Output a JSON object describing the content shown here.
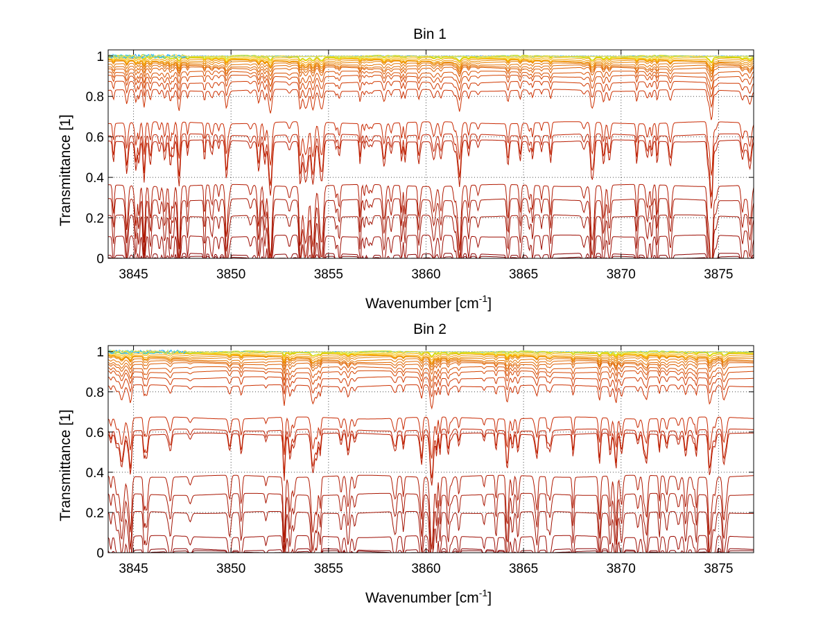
{
  "figure": {
    "background": "#ffffff"
  },
  "chart_data": [
    {
      "type": "line",
      "title": "Bin 1",
      "xlabel": "Wavenumber [cm",
      "xlabel_sup": "-1",
      "xlabel_end": "]",
      "ylabel": "Transmittance [1]",
      "xlim": [
        3843.7,
        3876.8
      ],
      "ylim": [
        0,
        1.03
      ],
      "xticks": [
        3845,
        3850,
        3855,
        3860,
        3865,
        3870,
        3875
      ],
      "xtick_labels": [
        "3845",
        "3850",
        "3855",
        "3860",
        "3865",
        "3870",
        "3875"
      ],
      "yticks": [
        0,
        0.2,
        0.4,
        0.6,
        0.8,
        1
      ],
      "ytick_labels": [
        "0",
        "0.2",
        "0.4",
        "0.6",
        "0.8",
        "1"
      ],
      "grid": true,
      "baselines": [
        0.005,
        0.02,
        0.11,
        0.21,
        0.29,
        0.36,
        0.58,
        0.61,
        0.67,
        0.83,
        0.87,
        0.9,
        0.92,
        0.94,
        0.95,
        0.96,
        0.97,
        0.975,
        0.98,
        0.985,
        0.99,
        0.993,
        0.996,
        0.998
      ],
      "strong_lines": [
        {
          "x": 3852.0,
          "depth": 0.55
        },
        {
          "x": 3853.8,
          "depth": 0.5
        },
        {
          "x": 3854.2,
          "depth": 0.6
        },
        {
          "x": 3854.6,
          "depth": 0.45
        },
        {
          "x": 3860.4,
          "depth": 0.25
        },
        {
          "x": 3874.6,
          "depth": 0.7
        },
        {
          "x": 3876.6,
          "depth": 0.4
        }
      ],
      "colors": [
        "#7a0000",
        "#8b0000",
        "#9c0a00",
        "#a01000",
        "#a81400",
        "#b01800",
        "#b81c00",
        "#c02000",
        "#c82800",
        "#cc3000",
        "#d03800",
        "#d44400",
        "#d85000",
        "#dc5c00",
        "#e06800",
        "#e47400",
        "#e88000",
        "#ec8c00",
        "#f09800",
        "#f4a400",
        "#f8b400",
        "#f4c400",
        "#e8d800",
        "#c8e000"
      ],
      "noise_colors": [
        "#1f9fff",
        "#3cc8ff",
        "#7fe07f",
        "#ffd84a"
      ]
    },
    {
      "type": "line",
      "title": "Bin 2",
      "xlabel": "Wavenumber [cm",
      "xlabel_sup": "-1",
      "xlabel_end": "]",
      "ylabel": "Transmittance [1]",
      "xlim": [
        3843.7,
        3876.8
      ],
      "ylim": [
        0,
        1.03
      ],
      "xticks": [
        3845,
        3850,
        3855,
        3860,
        3865,
        3870,
        3875
      ],
      "xtick_labels": [
        "3845",
        "3850",
        "3855",
        "3860",
        "3865",
        "3870",
        "3875"
      ],
      "yticks": [
        0,
        0.2,
        0.4,
        0.6,
        0.8,
        1
      ],
      "ytick_labels": [
        "0",
        "0.2",
        "0.4",
        "0.6",
        "0.8",
        "1"
      ],
      "grid": true,
      "baselines": [
        0.005,
        0.015,
        0.08,
        0.2,
        0.29,
        0.38,
        0.59,
        0.61,
        0.67,
        0.83,
        0.87,
        0.9,
        0.92,
        0.94,
        0.95,
        0.96,
        0.97,
        0.975,
        0.98,
        0.985,
        0.99,
        0.993,
        0.996,
        0.998
      ],
      "strong_lines": [
        {
          "x": 3854.2,
          "depth": 0.55
        },
        {
          "x": 3860.3,
          "depth": 0.6
        },
        {
          "x": 3874.6,
          "depth": 0.35
        }
      ],
      "colors": [
        "#7a0000",
        "#8b0000",
        "#9c0a00",
        "#a01000",
        "#a81400",
        "#b01800",
        "#b81c00",
        "#c02000",
        "#c82800",
        "#cc3000",
        "#d03800",
        "#d44400",
        "#d85000",
        "#dc5c00",
        "#e06800",
        "#e47400",
        "#e88000",
        "#ec8c00",
        "#f09800",
        "#f4a400",
        "#f8b400",
        "#f4c400",
        "#e8d800",
        "#c8e000"
      ],
      "noise_colors": [
        "#1f9fff",
        "#3cc8ff",
        "#7fe07f",
        "#ffd84a"
      ]
    }
  ]
}
